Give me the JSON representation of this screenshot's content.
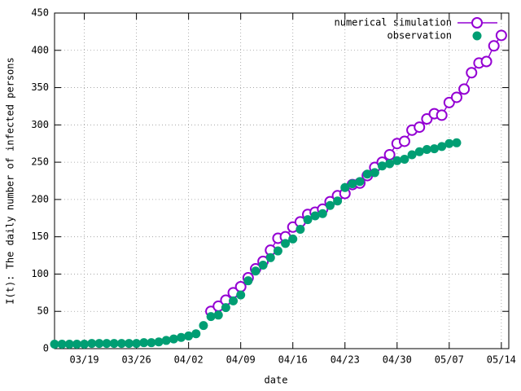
{
  "chart_data": {
    "type": "line",
    "xlabel": "date",
    "ylabel": "I(t): The daily number of infected persons",
    "xlim": [
      "03/15",
      "05/15"
    ],
    "xticks": [
      "03/19",
      "03/26",
      "04/02",
      "04/09",
      "04/16",
      "04/23",
      "04/30",
      "05/07",
      "05/14"
    ],
    "ylim": [
      0,
      450
    ],
    "yticks": [
      0,
      50,
      100,
      150,
      200,
      250,
      300,
      350,
      400,
      450
    ],
    "grid": true,
    "legend": "top-right",
    "series": [
      {
        "name": "numerical simulation",
        "color": "#9400d3",
        "style": "line-open-circle",
        "x": [
          "04/05",
          "04/06",
          "04/07",
          "04/08",
          "04/09",
          "04/10",
          "04/11",
          "04/12",
          "04/13",
          "04/14",
          "04/15",
          "04/16",
          "04/17",
          "04/18",
          "04/19",
          "04/20",
          "04/21",
          "04/22",
          "04/23",
          "04/24",
          "04/25",
          "04/26",
          "04/27",
          "04/28",
          "04/29",
          "04/30",
          "05/01",
          "05/02",
          "05/03",
          "05/04",
          "05/05",
          "05/06",
          "05/07",
          "05/08",
          "05/09",
          "05/10",
          "05/11",
          "05/12",
          "05/13",
          "05/14"
        ],
        "values": [
          50,
          57,
          65,
          75,
          83,
          95,
          107,
          117,
          132,
          148,
          150,
          163,
          170,
          180,
          183,
          187,
          197,
          205,
          208,
          220,
          222,
          232,
          243,
          250,
          260,
          275,
          278,
          293,
          297,
          308,
          315,
          313,
          330,
          337,
          348,
          370,
          383,
          385,
          406,
          420
        ]
      },
      {
        "name": "observation",
        "color": "#009e73",
        "style": "filled-circle",
        "x": [
          "03/15",
          "03/16",
          "03/17",
          "03/18",
          "03/19",
          "03/20",
          "03/21",
          "03/22",
          "03/23",
          "03/24",
          "03/25",
          "03/26",
          "03/27",
          "03/28",
          "03/29",
          "03/30",
          "03/31",
          "04/01",
          "04/02",
          "04/03",
          "04/04",
          "04/05",
          "04/06",
          "04/07",
          "04/08",
          "04/09",
          "04/10",
          "04/11",
          "04/12",
          "04/13",
          "04/14",
          "04/15",
          "04/16",
          "04/17",
          "04/18",
          "04/19",
          "04/20",
          "04/21",
          "04/22",
          "04/23",
          "04/24",
          "04/25",
          "04/26",
          "04/27",
          "04/28",
          "04/29",
          "04/30",
          "05/01",
          "05/02",
          "05/03",
          "05/04",
          "05/05",
          "05/06",
          "05/07",
          "05/08"
        ],
        "values": [
          6,
          6,
          6,
          6,
          6,
          7,
          7,
          7,
          7,
          7,
          7,
          7,
          8,
          8,
          9,
          11,
          13,
          15,
          17,
          20,
          31,
          43,
          45,
          55,
          64,
          72,
          91,
          104,
          112,
          122,
          131,
          141,
          147,
          160,
          173,
          178,
          181,
          192,
          198,
          216,
          221,
          224,
          234,
          236,
          245,
          248,
          252,
          254,
          260,
          264,
          267,
          268,
          271,
          275,
          276
        ]
      }
    ]
  }
}
